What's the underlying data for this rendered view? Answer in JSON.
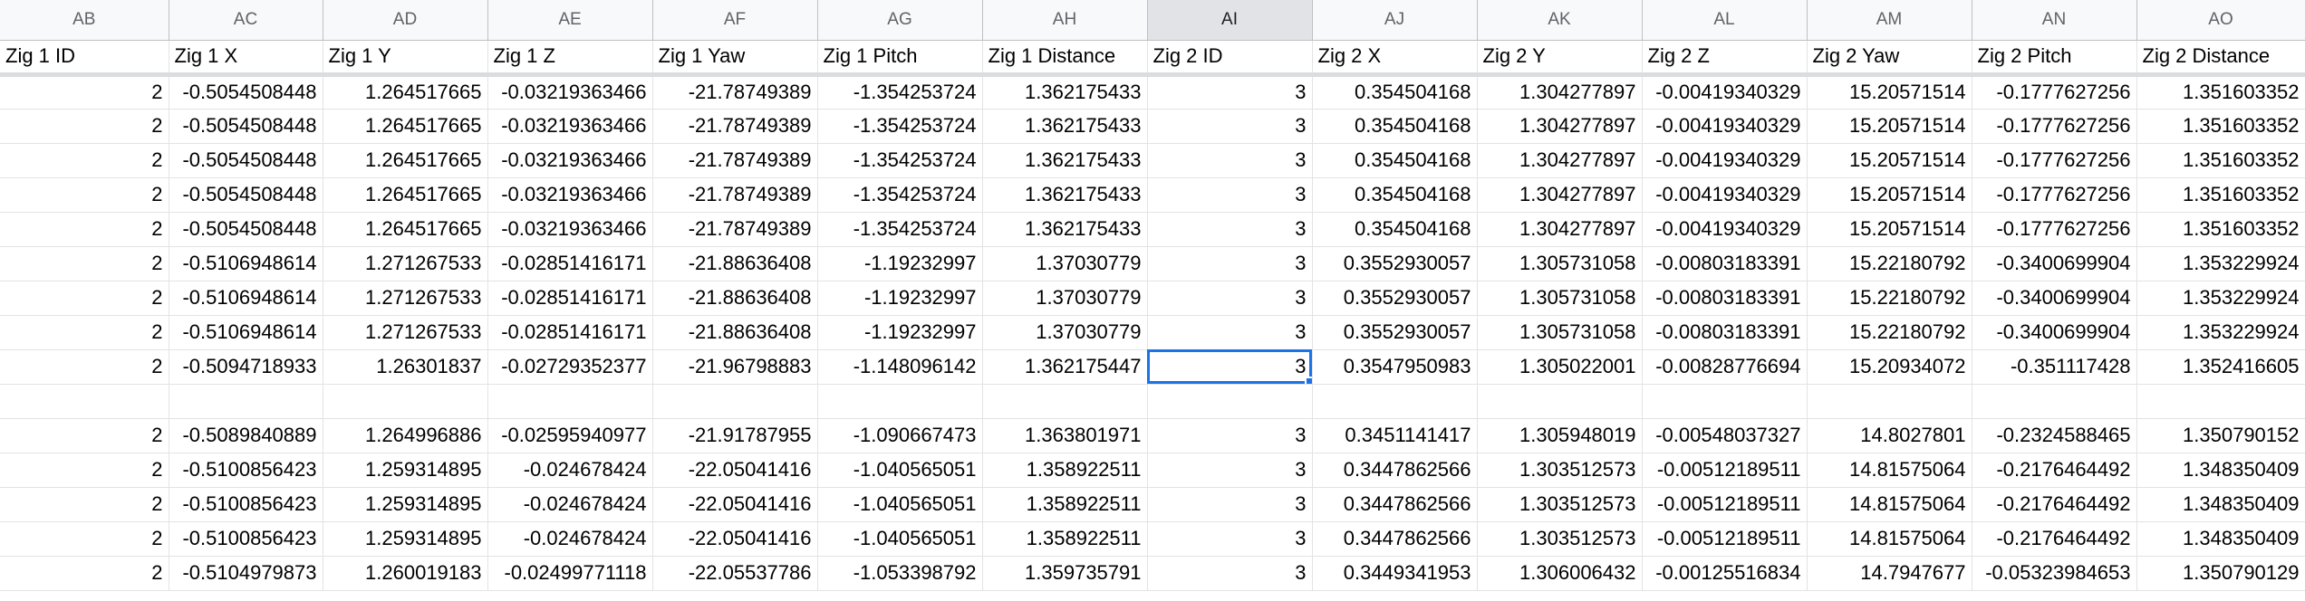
{
  "columns": [
    "AB",
    "AC",
    "AD",
    "AE",
    "AF",
    "AG",
    "AH",
    "AI",
    "AJ",
    "AK",
    "AL",
    "AM",
    "AN",
    "AO"
  ],
  "active_column": "AI",
  "headers": [
    "Zig 1 ID",
    "Zig 1 X",
    "Zig 1 Y",
    "Zig 1 Z",
    "Zig 1 Yaw",
    "Zig 1 Pitch",
    "Zig 1 Distance",
    "Zig 2 ID",
    "Zig 2 X",
    "Zig 2 Y",
    "Zig 2 Z",
    "Zig 2 Yaw",
    "Zig 2 Pitch",
    "Zig 2 Distance"
  ],
  "rows": [
    [
      "2",
      "-0.5054508448",
      "1.264517665",
      "-0.03219363466",
      "-21.78749389",
      "-1.354253724",
      "1.362175433",
      "3",
      "0.354504168",
      "1.304277897",
      "-0.00419340329",
      "15.20571514",
      "-0.1777627256",
      "1.351603352"
    ],
    [
      "2",
      "-0.5054508448",
      "1.264517665",
      "-0.03219363466",
      "-21.78749389",
      "-1.354253724",
      "1.362175433",
      "3",
      "0.354504168",
      "1.304277897",
      "-0.00419340329",
      "15.20571514",
      "-0.1777627256",
      "1.351603352"
    ],
    [
      "2",
      "-0.5054508448",
      "1.264517665",
      "-0.03219363466",
      "-21.78749389",
      "-1.354253724",
      "1.362175433",
      "3",
      "0.354504168",
      "1.304277897",
      "-0.00419340329",
      "15.20571514",
      "-0.1777627256",
      "1.351603352"
    ],
    [
      "2",
      "-0.5054508448",
      "1.264517665",
      "-0.03219363466",
      "-21.78749389",
      "-1.354253724",
      "1.362175433",
      "3",
      "0.354504168",
      "1.304277897",
      "-0.00419340329",
      "15.20571514",
      "-0.1777627256",
      "1.351603352"
    ],
    [
      "2",
      "-0.5054508448",
      "1.264517665",
      "-0.03219363466",
      "-21.78749389",
      "-1.354253724",
      "1.362175433",
      "3",
      "0.354504168",
      "1.304277897",
      "-0.00419340329",
      "15.20571514",
      "-0.1777627256",
      "1.351603352"
    ],
    [
      "2",
      "-0.5106948614",
      "1.271267533",
      "-0.02851416171",
      "-21.88636408",
      "-1.19232997",
      "1.37030779",
      "3",
      "0.3552930057",
      "1.305731058",
      "-0.00803183391",
      "15.22180792",
      "-0.3400699904",
      "1.353229924"
    ],
    [
      "2",
      "-0.5106948614",
      "1.271267533",
      "-0.02851416171",
      "-21.88636408",
      "-1.19232997",
      "1.37030779",
      "3",
      "0.3552930057",
      "1.305731058",
      "-0.00803183391",
      "15.22180792",
      "-0.3400699904",
      "1.353229924"
    ],
    [
      "2",
      "-0.5106948614",
      "1.271267533",
      "-0.02851416171",
      "-21.88636408",
      "-1.19232997",
      "1.37030779",
      "3",
      "0.3552930057",
      "1.305731058",
      "-0.00803183391",
      "15.22180792",
      "-0.3400699904",
      "1.353229924"
    ],
    [
      "2",
      "-0.5094718933",
      "1.26301837",
      "-0.02729352377",
      "-21.96798883",
      "-1.148096142",
      "1.362175447",
      "3",
      "0.3547950983",
      "1.305022001",
      "-0.00828776694",
      "15.20934072",
      "-0.351117428",
      "1.352416605"
    ],
    [
      "",
      "",
      "",
      "",
      "",
      "",
      "",
      "",
      "",
      "",
      "",
      "",
      "",
      ""
    ],
    [
      "2",
      "-0.5089840889",
      "1.264996886",
      "-0.02595940977",
      "-21.91787955",
      "-1.090667473",
      "1.363801971",
      "3",
      "0.3451141417",
      "1.305948019",
      "-0.00548037327",
      "14.8027801",
      "-0.2324588465",
      "1.350790152"
    ],
    [
      "2",
      "-0.5100856423",
      "1.259314895",
      "-0.024678424",
      "-22.05041416",
      "-1.040565051",
      "1.358922511",
      "3",
      "0.3447862566",
      "1.303512573",
      "-0.00512189511",
      "14.81575064",
      "-0.2176464492",
      "1.348350409"
    ],
    [
      "2",
      "-0.5100856423",
      "1.259314895",
      "-0.024678424",
      "-22.05041416",
      "-1.040565051",
      "1.358922511",
      "3",
      "0.3447862566",
      "1.303512573",
      "-0.00512189511",
      "14.81575064",
      "-0.2176464492",
      "1.348350409"
    ],
    [
      "2",
      "-0.5100856423",
      "1.259314895",
      "-0.024678424",
      "-22.05041416",
      "-1.040565051",
      "1.358922511",
      "3",
      "0.3447862566",
      "1.303512573",
      "-0.00512189511",
      "14.81575064",
      "-0.2176464492",
      "1.348350409"
    ],
    [
      "2",
      "-0.5104979873",
      "1.260019183",
      "-0.02499771118",
      "-22.05537786",
      "-1.053398792",
      "1.359735791",
      "3",
      "0.3449341953",
      "1.306006432",
      "-0.00125516834",
      "14.7947677",
      "-0.05323984653",
      "1.350790129"
    ]
  ],
  "selected_cell": {
    "row": 8,
    "col": 7
  }
}
